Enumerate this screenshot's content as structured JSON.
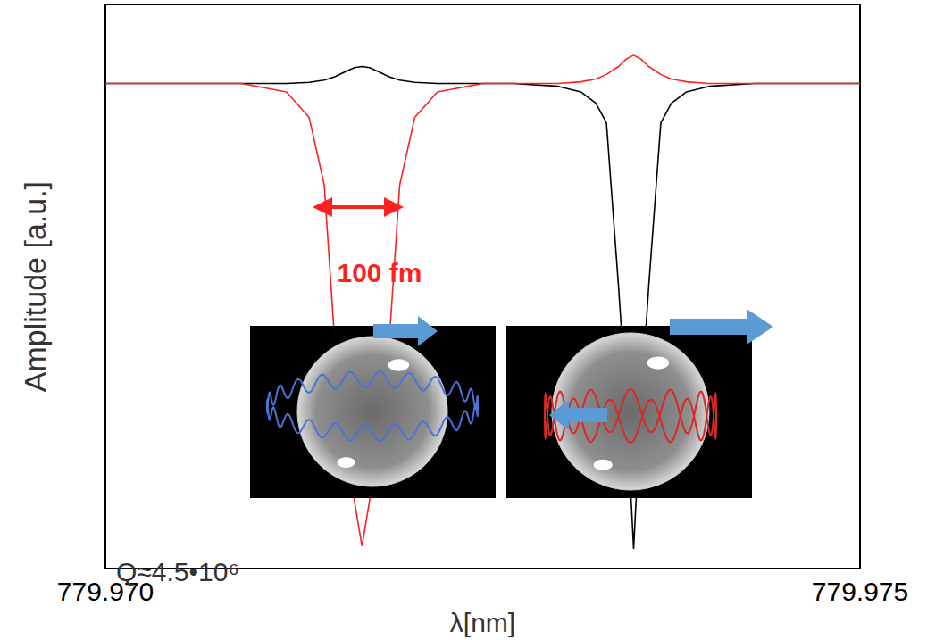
{
  "chart_data": {
    "type": "line",
    "x_label": "λ[nm]",
    "y_label": "Amplitude [a.u.]",
    "annotations": [
      "100 fm",
      "Q≈4.5•10⁶"
    ],
    "grid": false,
    "tick_labels": "x",
    "xlim": [
      779.97,
      779.975
    ],
    "xticks": [
      {
        "value": 779.97,
        "label": "779.970"
      },
      {
        "value": 779.975,
        "label": "779.975"
      }
    ],
    "ylim": [
      0,
      1
    ],
    "x": [
      779.97,
      779.9705,
      779.9709,
      779.9712,
      779.97135,
      779.97145,
      779.97152,
      779.9716,
      779.97165,
      779.9717,
      779.97175,
      779.9718,
      779.97188,
      779.97195,
      779.97205,
      779.9722,
      779.9725,
      779.9727,
      779.973,
      779.97315,
      779.97325,
      779.97332,
      779.9734,
      779.97345,
      779.9735,
      779.97355,
      779.9736,
      779.97368,
      779.97375,
      779.97385,
      779.974,
      779.9743,
      779.9747,
      779.975
    ],
    "series": [
      {
        "color": "#000000",
        "values": [
          0.86,
          0.86,
          0.86,
          0.86,
          0.862,
          0.866,
          0.872,
          0.882,
          0.888,
          0.89,
          0.888,
          0.882,
          0.872,
          0.866,
          0.862,
          0.86,
          0.86,
          0.86,
          0.855,
          0.845,
          0.825,
          0.79,
          0.5,
          0.3,
          0.035,
          0.3,
          0.5,
          0.79,
          0.825,
          0.845,
          0.855,
          0.86,
          0.86,
          0.86
        ]
      },
      {
        "color": "#ff2020",
        "values": [
          0.86,
          0.86,
          0.86,
          0.845,
          0.8,
          0.68,
          0.4,
          0.22,
          0.12,
          0.04,
          0.12,
          0.22,
          0.4,
          0.68,
          0.8,
          0.845,
          0.86,
          0.86,
          0.86,
          0.863,
          0.868,
          0.876,
          0.89,
          0.903,
          0.91,
          0.903,
          0.89,
          0.876,
          0.868,
          0.863,
          0.86,
          0.86,
          0.86,
          0.86
        ]
      }
    ]
  }
}
